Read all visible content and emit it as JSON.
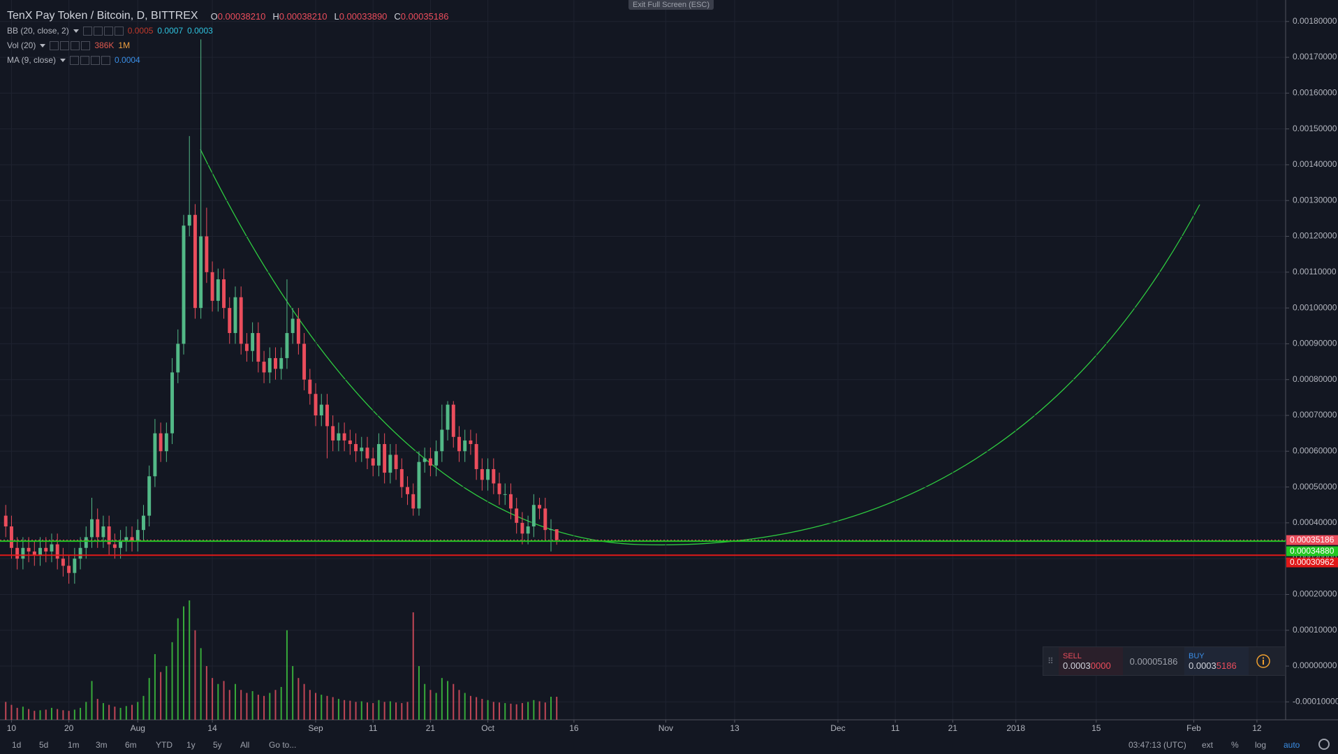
{
  "chart_data": {
    "type": "candlestick",
    "title": "TenX Pay Token / Bitcoin, D, BITTREX",
    "ohlc_legend": [
      {
        "key": "O",
        "value": "0.00038210"
      },
      {
        "key": "H",
        "value": "0.00038210"
      },
      {
        "key": "L",
        "value": "0.00033890"
      },
      {
        "key": "C",
        "value": "0.00035186"
      }
    ],
    "indicators": [
      {
        "name": "BB (20, close, 2)",
        "values": [
          "0.0005",
          "0.0007",
          "0.0003"
        ],
        "colors": [
          "#c0392b",
          "#2fc4e0",
          "#2fc4e0"
        ]
      },
      {
        "name": "Vol (20)",
        "values": [
          "386K",
          "1M"
        ],
        "colors": [
          "#e05a4f",
          "#f0a040"
        ]
      },
      {
        "name": "MA (9, close)",
        "values": [
          "0.0004"
        ],
        "colors": [
          "#3a8ee6"
        ]
      }
    ],
    "x": [
      8,
      9,
      10,
      11,
      12,
      13,
      14,
      15,
      16,
      17,
      18,
      19,
      20,
      21,
      22,
      23,
      24,
      25,
      26,
      27,
      28,
      29,
      30,
      31,
      32,
      33,
      34,
      35,
      36,
      37,
      38,
      39,
      40,
      41,
      42,
      43,
      44,
      45,
      46,
      47,
      48,
      49,
      50,
      51,
      52,
      53,
      54,
      55,
      56,
      57,
      58,
      59,
      60,
      61,
      62,
      63,
      64,
      65,
      66,
      67,
      68,
      69,
      70,
      71,
      72,
      73,
      74,
      75,
      76,
      77,
      78,
      79,
      80,
      81,
      82,
      83,
      84,
      85,
      86,
      87,
      88,
      89,
      90,
      91,
      92,
      93,
      94,
      95,
      96,
      97,
      98,
      99,
      100,
      101,
      102,
      103,
      104
    ],
    "open": [
      0.00042,
      0.00039,
      0.00033,
      0.0003,
      0.00033,
      0.00032,
      0.00031,
      0.00033,
      0.00032,
      0.00034,
      0.0003,
      0.00028,
      0.00026,
      0.0003,
      0.00033,
      0.00036,
      0.00041,
      0.00036,
      0.00039,
      0.00034,
      0.00033,
      0.00035,
      0.00036,
      0.00035,
      0.00038,
      0.00042,
      0.00053,
      0.00065,
      0.0006,
      0.00065,
      0.00082,
      0.0009,
      0.00123,
      0.00126,
      0.001,
      0.0012,
      0.0011,
      0.00102,
      0.00108,
      0.001,
      0.00093,
      0.00103,
      0.0009,
      0.00088,
      0.00093,
      0.00085,
      0.00082,
      0.00086,
      0.00083,
      0.00086,
      0.00093,
      0.00097,
      0.0009,
      0.0008,
      0.00076,
      0.0007,
      0.00073,
      0.00067,
      0.00063,
      0.00065,
      0.00063,
      0.00062,
      0.0006,
      0.00061,
      0.00058,
      0.00056,
      0.00062,
      0.00054,
      0.00059,
      0.00055,
      0.0005,
      0.00048,
      0.00044,
      0.00057,
      0.00058,
      0.00056,
      0.0006,
      0.00066,
      0.00073,
      0.00064,
      0.0006,
      0.00063,
      0.00062,
      0.00055,
      0.00052,
      0.00055,
      0.00051,
      0.00048,
      0.00048,
      0.00044,
      0.0004,
      0.00037,
      0.00039,
      0.00045,
      0.00044,
      0.00038,
      0.0003821
    ],
    "high": [
      0.00045,
      0.00042,
      0.00036,
      0.00036,
      0.00036,
      0.00035,
      0.00036,
      0.00036,
      0.00037,
      0.00037,
      0.00033,
      0.00031,
      0.00033,
      0.00036,
      0.00039,
      0.00047,
      0.00044,
      0.00042,
      0.00042,
      0.00037,
      0.00038,
      0.00039,
      0.00039,
      0.00041,
      0.00045,
      0.00056,
      0.00069,
      0.00068,
      0.00068,
      0.00086,
      0.00094,
      0.00126,
      0.00148,
      0.00129,
      0.00175,
      0.00128,
      0.00113,
      0.00111,
      0.00111,
      0.00103,
      0.00106,
      0.00106,
      0.00093,
      0.00096,
      0.00096,
      0.00088,
      0.00089,
      0.00089,
      0.00089,
      0.00108,
      0.001,
      0.001,
      0.00093,
      0.00083,
      0.00079,
      0.00076,
      0.00076,
      0.0007,
      0.00068,
      0.00068,
      0.00066,
      0.00065,
      0.00064,
      0.00064,
      0.00061,
      0.00065,
      0.00065,
      0.00062,
      0.00062,
      0.00058,
      0.00053,
      0.00051,
      0.0006,
      0.00061,
      0.00061,
      0.00063,
      0.00073,
      0.00074,
      0.00074,
      0.00067,
      0.00066,
      0.00066,
      0.00065,
      0.00058,
      0.00058,
      0.00058,
      0.00054,
      0.00051,
      0.00051,
      0.00047,
      0.00043,
      0.00042,
      0.00048,
      0.00047,
      0.00047,
      0.00041,
      0.0003821
    ],
    "low": [
      0.00036,
      0.0003,
      0.00027,
      0.00027,
      0.00029,
      0.00028,
      0.00028,
      0.00029,
      0.00029,
      0.00027,
      0.00025,
      0.00023,
      0.00023,
      0.00027,
      0.0003,
      0.00033,
      0.00033,
      0.00033,
      0.00031,
      0.0003,
      0.0003,
      0.00032,
      0.00032,
      0.00032,
      0.00035,
      0.00039,
      0.0005,
      0.00057,
      0.00057,
      0.00062,
      0.00079,
      0.00087,
      0.0012,
      0.00097,
      0.00097,
      0.00107,
      0.00099,
      0.00099,
      0.00097,
      0.0009,
      0.0009,
      0.00087,
      0.00085,
      0.00085,
      0.00082,
      0.00079,
      0.00079,
      0.0008,
      0.0008,
      0.00083,
      0.0009,
      0.00087,
      0.00077,
      0.00073,
      0.00067,
      0.00067,
      0.00058,
      0.0006,
      0.0006,
      0.0006,
      0.00059,
      0.00057,
      0.00057,
      0.00055,
      0.00053,
      0.00053,
      0.00051,
      0.00051,
      0.00052,
      0.00047,
      0.00045,
      0.00042,
      0.00042,
      0.00054,
      0.00053,
      0.00053,
      0.00057,
      0.00063,
      0.00061,
      0.00057,
      0.00057,
      0.00059,
      0.00052,
      0.00049,
      0.00049,
      0.00048,
      0.00045,
      0.00045,
      0.00041,
      0.00037,
      0.00034,
      0.00034,
      0.00036,
      0.00041,
      0.00035,
      0.00032,
      0.0003389
    ],
    "close": [
      0.00039,
      0.00033,
      0.0003,
      0.00033,
      0.00032,
      0.00031,
      0.00033,
      0.00032,
      0.00034,
      0.0003,
      0.00028,
      0.00026,
      0.0003,
      0.00033,
      0.00036,
      0.00041,
      0.00036,
      0.00039,
      0.00034,
      0.00033,
      0.00035,
      0.00036,
      0.00035,
      0.00038,
      0.00042,
      0.00053,
      0.00065,
      0.0006,
      0.00065,
      0.00082,
      0.0009,
      0.00123,
      0.00126,
      0.001,
      0.0012,
      0.0011,
      0.00102,
      0.00108,
      0.001,
      0.00093,
      0.00103,
      0.0009,
      0.00088,
      0.00093,
      0.00085,
      0.00082,
      0.00086,
      0.00083,
      0.00086,
      0.00093,
      0.00097,
      0.0009,
      0.0008,
      0.00076,
      0.0007,
      0.00073,
      0.00067,
      0.00063,
      0.00065,
      0.00063,
      0.00062,
      0.0006,
      0.00061,
      0.00058,
      0.00056,
      0.00062,
      0.00054,
      0.00059,
      0.00055,
      0.0005,
      0.00048,
      0.00044,
      0.00057,
      0.00058,
      0.00056,
      0.0006,
      0.00066,
      0.00073,
      0.00064,
      0.0006,
      0.00063,
      0.00062,
      0.00055,
      0.00052,
      0.00055,
      0.00051,
      0.00048,
      0.00048,
      0.00044,
      0.0004,
      0.00037,
      0.00039,
      0.00045,
      0.00044,
      0.00038,
      0.0003821,
      0.00035186
    ],
    "up_color": "#53b987",
    "down_color": "#eb4d5c",
    "volume": {
      "values": [
        300000,
        250000,
        200000,
        220000,
        180000,
        150000,
        160000,
        170000,
        200000,
        180000,
        160000,
        150000,
        170000,
        200000,
        300000,
        650000,
        350000,
        280000,
        250000,
        220000,
        200000,
        230000,
        250000,
        300000,
        400000,
        700000,
        1100000,
        800000,
        900000,
        1300000,
        1700000,
        1900000,
        2000000,
        1500000,
        1200000,
        900000,
        700000,
        600000,
        650000,
        500000,
        600000,
        500000,
        450000,
        480000,
        420000,
        400000,
        450000,
        500000,
        550000,
        1500000,
        900000,
        700000,
        600000,
        500000,
        450000,
        420000,
        400000,
        380000,
        350000,
        330000,
        320000,
        300000,
        310000,
        290000,
        280000,
        330000,
        300000,
        310000,
        290000,
        280000,
        300000,
        1800000,
        900000,
        600000,
        500000,
        450000,
        700000,
        650000,
        600000,
        500000,
        450000,
        400000,
        380000,
        350000,
        330000,
        300000,
        290000,
        280000,
        270000,
        260000,
        280000,
        300000,
        330000,
        310000,
        290000,
        386000,
        386000
      ],
      "up_color": "#3ec43e",
      "down_color": "#e04f5f"
    },
    "xlim": [
      7,
      231
    ],
    "xticks": [
      {
        "value": 9,
        "label": "10"
      },
      {
        "value": 19,
        "label": "20"
      },
      {
        "value": 31,
        "label": "Aug"
      },
      {
        "value": 44,
        "label": "14"
      },
      {
        "value": 62,
        "label": "Sep"
      },
      {
        "value": 72,
        "label": "11"
      },
      {
        "value": 82,
        "label": "21"
      },
      {
        "value": 92,
        "label": "Oct"
      },
      {
        "value": 107,
        "label": "16"
      },
      {
        "value": 123,
        "label": "Nov"
      },
      {
        "value": 135,
        "label": "13"
      },
      {
        "value": 153,
        "label": "Dec"
      },
      {
        "value": 163,
        "label": "11"
      },
      {
        "value": 173,
        "label": "21"
      },
      {
        "value": 184,
        "label": "2018"
      },
      {
        "value": 198,
        "label": "15"
      },
      {
        "value": 215,
        "label": "Feb"
      },
      {
        "value": 226,
        "label": "12"
      }
    ],
    "ylim": [
      -0.00015,
      0.00186
    ],
    "yticks": [
      {
        "value": -0.0001,
        "label": "-0.00010000"
      },
      {
        "value": 0,
        "label": "0.00000000"
      },
      {
        "value": 0.0001,
        "label": "0.00010000"
      },
      {
        "value": 0.0002,
        "label": "0.00020000"
      },
      {
        "value": 0.0003,
        "label": "0.00030000"
      },
      {
        "value": 0.0004,
        "label": "0.00040000"
      },
      {
        "value": 0.0005,
        "label": "0.00050000"
      },
      {
        "value": 0.0006,
        "label": "0.00060000"
      },
      {
        "value": 0.0007,
        "label": "0.00070000"
      },
      {
        "value": 0.0008,
        "label": "0.00080000"
      },
      {
        "value": 0.0009,
        "label": "0.00090000"
      },
      {
        "value": 0.001,
        "label": "0.00100000"
      },
      {
        "value": 0.0011,
        "label": "0.00110000"
      },
      {
        "value": 0.0012,
        "label": "0.00120000"
      },
      {
        "value": 0.0013,
        "label": "0.00130000"
      },
      {
        "value": 0.0014,
        "label": "0.00140000"
      },
      {
        "value": 0.0015,
        "label": "0.00150000"
      },
      {
        "value": 0.0016,
        "label": "0.00160000"
      },
      {
        "value": 0.0017,
        "label": "0.00170000"
      },
      {
        "value": 0.0018,
        "label": "0.00180000"
      }
    ],
    "grid": true,
    "price_lines": [
      {
        "value": 0.00035186,
        "label": "0.00035186",
        "color": "#eb4d5c",
        "style": "dotted"
      },
      {
        "value": 0.0003488,
        "label": "0.00034880",
        "color": "#22c722",
        "style": "solid"
      },
      {
        "value": 0.00030962,
        "label": "0.00030962",
        "color": "#e01818",
        "style": "solid"
      }
    ]
  },
  "fullscreen_hint": "Exit Full Screen (ESC)",
  "trade_widget": {
    "sell_label": "SELL",
    "sell_price": [
      "0.0003",
      "0000"
    ],
    "spread": "0.00005186",
    "buy_label": "BUY",
    "buy_price": [
      "0.0003",
      "5186"
    ]
  },
  "toolbar": {
    "timeframes": [
      "1d",
      "5d",
      "1m",
      "3m",
      "6m",
      "YTD",
      "1y",
      "5y",
      "All"
    ],
    "go_to": "Go to...",
    "clock": "03:47:13 (UTC)",
    "options": [
      "ext",
      "%",
      "log",
      "auto"
    ]
  }
}
